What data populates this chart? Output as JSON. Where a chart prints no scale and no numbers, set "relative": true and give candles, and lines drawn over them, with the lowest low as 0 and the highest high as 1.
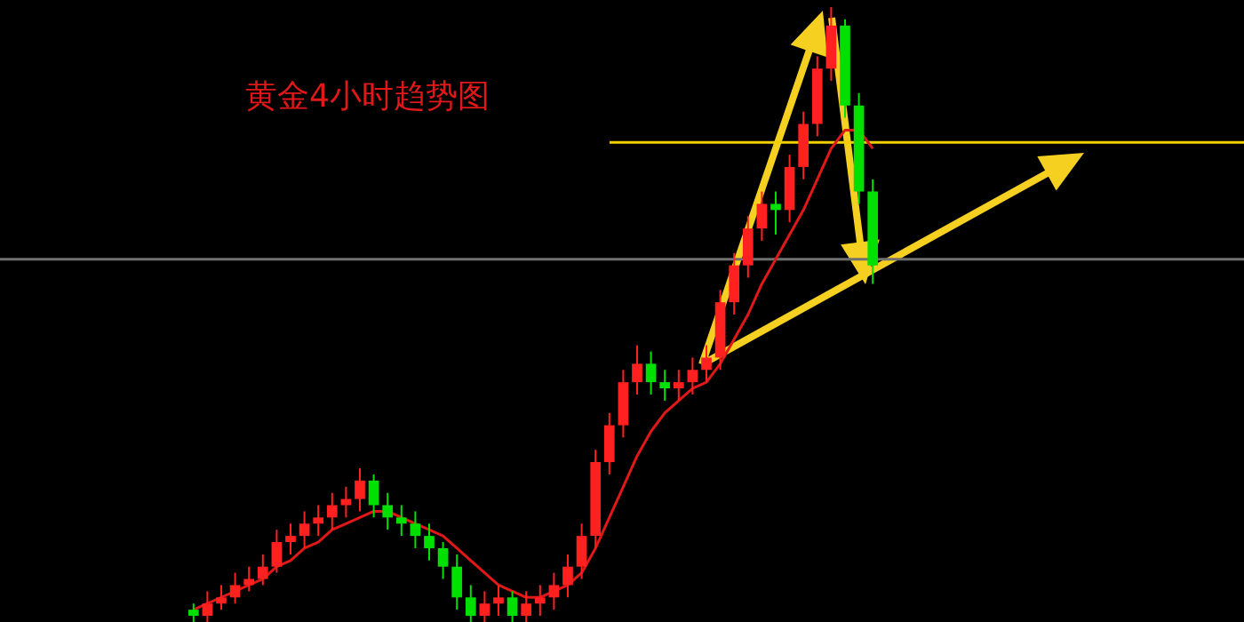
{
  "chart_data": {
    "type": "candlestick",
    "title": "黄金4小时趋势图",
    "relative": true,
    "legend": false,
    "categories": [
      null,
      null,
      null,
      null,
      null,
      null,
      null,
      null,
      null,
      null,
      null,
      null,
      null,
      null,
      null,
      null,
      null,
      null,
      null,
      null,
      null,
      null,
      null,
      null,
      null,
      null,
      null,
      null,
      null,
      null,
      null,
      null,
      null,
      null,
      null,
      null,
      null,
      null,
      null,
      null,
      null,
      null,
      null,
      null,
      null,
      null,
      null,
      null,
      null,
      null
    ],
    "ohlc": [
      [
        0.02,
        0.03,
        0,
        0.01
      ],
      [
        0.01,
        0.05,
        0,
        0.03
      ],
      [
        0.03,
        0.06,
        0.02,
        0.04
      ],
      [
        0.04,
        0.08,
        0.03,
        0.06
      ],
      [
        0.06,
        0.09,
        0.05,
        0.07
      ],
      [
        0.07,
        0.11,
        0.06,
        0.09
      ],
      [
        0.09,
        0.15,
        0.08,
        0.13
      ],
      [
        0.13,
        0.16,
        0.11,
        0.14
      ],
      [
        0.14,
        0.18,
        0.12,
        0.16
      ],
      [
        0.16,
        0.19,
        0.14,
        0.17
      ],
      [
        0.17,
        0.21,
        0.15,
        0.19
      ],
      [
        0.19,
        0.22,
        0.17,
        0.2
      ],
      [
        0.2,
        0.25,
        0.18,
        0.23
      ],
      [
        0.23,
        0.24,
        0.17,
        0.19
      ],
      [
        0.19,
        0.21,
        0.15,
        0.17
      ],
      [
        0.17,
        0.19,
        0.14,
        0.16
      ],
      [
        0.16,
        0.18,
        0.12,
        0.14
      ],
      [
        0.14,
        0.16,
        0.1,
        0.12
      ],
      [
        0.12,
        0.13,
        0.07,
        0.09
      ],
      [
        0.09,
        0.11,
        0.02,
        0.04
      ],
      [
        0.04,
        0.06,
        0,
        0.01
      ],
      [
        0.01,
        0.05,
        0,
        0.03
      ],
      [
        0.03,
        0.06,
        0.01,
        0.04
      ],
      [
        0.04,
        0.05,
        0,
        0.01
      ],
      [
        0.01,
        0.05,
        0,
        0.03
      ],
      [
        0.03,
        0.06,
        0.01,
        0.04
      ],
      [
        0.04,
        0.08,
        0.02,
        0.06
      ],
      [
        0.06,
        0.11,
        0.04,
        0.09
      ],
      [
        0.09,
        0.16,
        0.07,
        0.14
      ],
      [
        0.14,
        0.28,
        0.12,
        0.26
      ],
      [
        0.26,
        0.34,
        0.24,
        0.32
      ],
      [
        0.32,
        0.41,
        0.3,
        0.39
      ],
      [
        0.39,
        0.45,
        0.37,
        0.42
      ],
      [
        0.42,
        0.44,
        0.37,
        0.39
      ],
      [
        0.39,
        0.41,
        0.36,
        0.38
      ],
      [
        0.38,
        0.41,
        0.36,
        0.39
      ],
      [
        0.39,
        0.43,
        0.37,
        0.41
      ],
      [
        0.41,
        0.45,
        0.39,
        0.43
      ],
      [
        0.43,
        0.54,
        0.41,
        0.52
      ],
      [
        0.52,
        0.6,
        0.5,
        0.58
      ],
      [
        0.58,
        0.66,
        0.56,
        0.64
      ],
      [
        0.64,
        0.7,
        0.62,
        0.68
      ],
      [
        0.68,
        0.7,
        0.63,
        0.67
      ],
      [
        0.67,
        0.76,
        0.65,
        0.74
      ],
      [
        0.74,
        0.83,
        0.72,
        0.81
      ],
      [
        0.81,
        0.92,
        0.79,
        0.9
      ],
      [
        0.9,
        1,
        0.88,
        0.97
      ],
      [
        0.97,
        0.98,
        0.82,
        0.84
      ],
      [
        0.84,
        0.86,
        0.68,
        0.7
      ],
      [
        0.7,
        0.72,
        0.55,
        0.58
      ]
    ],
    "colors": [
      "#00e000",
      "#ff2020",
      "#ff2020",
      "#ff2020",
      "#ff2020",
      "#ff2020",
      "#ff2020",
      "#ff2020",
      "#ff2020",
      "#ff2020",
      "#ff2020",
      "#ff2020",
      "#ff2020",
      "#00e000",
      "#00e000",
      "#00e000",
      "#00e000",
      "#00e000",
      "#00e000",
      "#00e000",
      "#00e000",
      "#ff2020",
      "#ff2020",
      "#00e000",
      "#ff2020",
      "#ff2020",
      "#ff2020",
      "#ff2020",
      "#ff2020",
      "#ff2020",
      "#ff2020",
      "#ff2020",
      "#ff2020",
      "#00e000",
      "#00e000",
      "#ff2020",
      "#ff2020",
      "#ff2020",
      "#ff2020",
      "#ff2020",
      "#ff2020",
      "#ff2020",
      "#00e000",
      "#ff2020",
      "#ff2020",
      "#ff2020",
      "#ff2020",
      "#00e000",
      "#00e000",
      "#00e000"
    ],
    "series": [
      {
        "type": "line",
        "color": "#e01818",
        "values": [
          0.02,
          0.03,
          0.04,
          0.05,
          0.06,
          0.07,
          0.09,
          0.1,
          0.12,
          0.13,
          0.15,
          0.16,
          0.17,
          0.18,
          0.18,
          0.17,
          0.16,
          0.15,
          0.14,
          0.12,
          0.1,
          0.08,
          0.06,
          0.05,
          0.04,
          0.04,
          0.05,
          0.06,
          0.08,
          0.12,
          0.17,
          0.22,
          0.27,
          0.31,
          0.34,
          0.36,
          0.38,
          0.39,
          0.42,
          0.46,
          0.5,
          0.55,
          0.59,
          0.63,
          0.67,
          0.72,
          0.77,
          0.8,
          0.8,
          0.77
        ]
      }
    ],
    "ref_lines": [
      {
        "axis": "y",
        "value": 0.78,
        "color": "#f0d000"
      },
      {
        "axis": "y",
        "value": 0.59,
        "color": "#707070"
      }
    ]
  }
}
